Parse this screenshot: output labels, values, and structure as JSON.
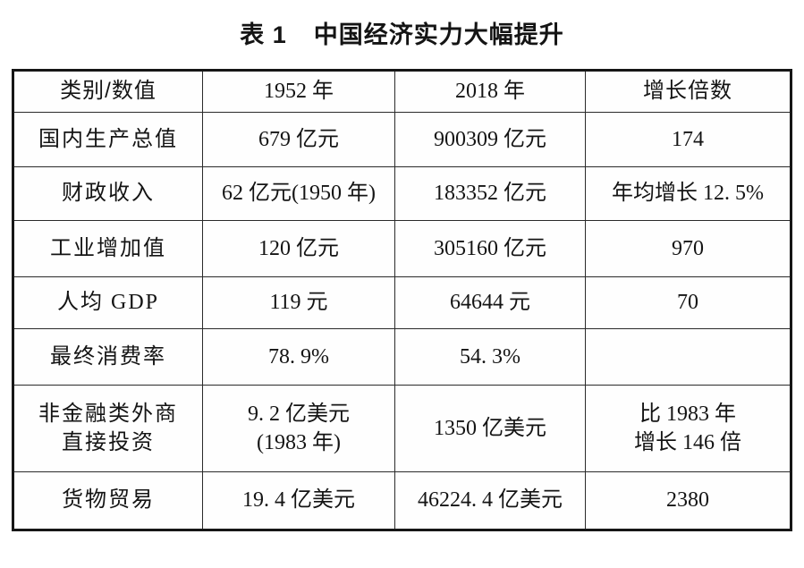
{
  "colors": {
    "background": "#ffffff",
    "text": "#141414",
    "table_border": "#161616",
    "grid_line": "#2a2a2a"
  },
  "caption": {
    "number": "表 1",
    "title": "中国经济实力大幅提升"
  },
  "table": {
    "headers": [
      "类别/数值",
      "1952 年",
      "2018 年",
      "增长倍数"
    ],
    "rows": [
      {
        "label": "国内生产总值",
        "y1952": "679 亿元",
        "y2018": "900309 亿元",
        "growth": "174"
      },
      {
        "label": "财政收入",
        "y1952": "62 亿元(1950 年)",
        "y2018": "183352 亿元",
        "growth": "年均增长 12. 5%"
      },
      {
        "label": "工业增加值",
        "y1952": "120 亿元",
        "y2018": "305160 亿元",
        "growth": "970"
      },
      {
        "label": "人均 GDP",
        "y1952": "119 元",
        "y2018": "64644 元",
        "growth": "70"
      },
      {
        "label": "最终消费率",
        "y1952": "78. 9%",
        "y2018": "54. 3%",
        "growth": ""
      },
      {
        "label": "非金融类外商\n直接投资",
        "y1952": "9. 2 亿美元\n(1983 年)",
        "y2018": "1350 亿美元",
        "growth": "比 1983 年\n增长 146 倍"
      },
      {
        "label": "货物贸易",
        "y1952": "19. 4 亿美元",
        "y2018": "46224. 4 亿美元",
        "growth": "2380"
      }
    ]
  }
}
